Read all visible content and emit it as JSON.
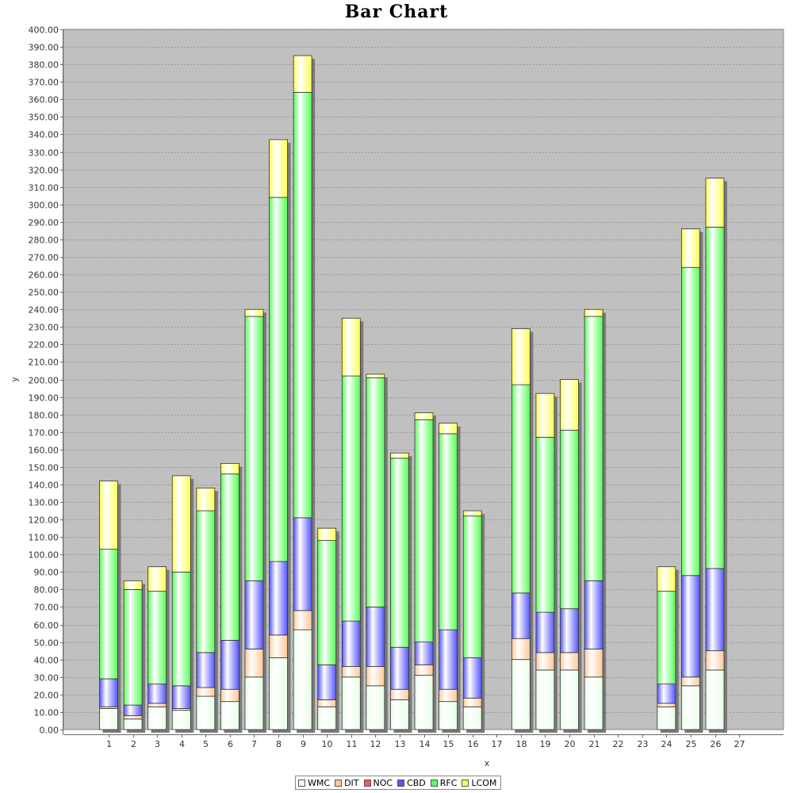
{
  "chart_data": {
    "type": "bar",
    "stacked": true,
    "title": "Bar Chart",
    "xlabel": "x",
    "ylabel": "y",
    "ylim": [
      0,
      400
    ],
    "ytick_step": 10,
    "grid": true,
    "legend_position": "bottom",
    "categories": [
      "1",
      "2",
      "3",
      "4",
      "5",
      "6",
      "7",
      "8",
      "9",
      "10",
      "11",
      "12",
      "13",
      "14",
      "15",
      "16",
      "17",
      "18",
      "19",
      "20",
      "21",
      "22",
      "23",
      "24",
      "25",
      "26",
      "27"
    ],
    "series": [
      {
        "name": "WMC",
        "color": "#e8ffe8",
        "values": [
          12,
          6,
          13,
          11,
          19,
          16,
          30,
          41,
          57,
          13,
          30,
          25,
          17,
          31,
          16,
          13,
          0,
          40,
          34,
          34,
          30,
          0,
          0,
          13,
          25,
          34,
          0
        ]
      },
      {
        "name": "DIT",
        "color": "#ffc896",
        "values": [
          1,
          2,
          2,
          1,
          5,
          7,
          16,
          13,
          11,
          4,
          6,
          11,
          6,
          6,
          7,
          5,
          0,
          12,
          10,
          10,
          16,
          0,
          0,
          2,
          5,
          11,
          0
        ]
      },
      {
        "name": "NOC",
        "color": "#ff5555",
        "values": [
          0,
          0,
          0,
          0,
          0,
          0,
          0,
          0,
          0,
          0,
          0,
          0,
          0,
          0,
          0,
          0,
          0,
          0,
          0,
          0,
          0,
          0,
          0,
          0,
          0,
          0,
          0
        ]
      },
      {
        "name": "CBD",
        "color": "#5555ff",
        "values": [
          16,
          6,
          11,
          13,
          20,
          28,
          39,
          42,
          53,
          20,
          26,
          34,
          24,
          13,
          34,
          23,
          0,
          26,
          23,
          25,
          39,
          0,
          0,
          11,
          58,
          47,
          0
        ]
      },
      {
        "name": "RFC",
        "color": "#55ff55",
        "values": [
          74,
          66,
          53,
          65,
          81,
          95,
          151,
          208,
          243,
          71,
          140,
          131,
          108,
          127,
          112,
          81,
          0,
          119,
          100,
          102,
          151,
          0,
          0,
          53,
          176,
          195,
          0
        ]
      },
      {
        "name": "LCOM",
        "color": "#ffff55",
        "values": [
          39,
          5,
          14,
          55,
          13,
          6,
          4,
          33,
          21,
          7,
          33,
          2,
          3,
          4,
          6,
          3,
          0,
          32,
          25,
          29,
          4,
          0,
          0,
          14,
          22,
          28,
          0
        ]
      }
    ]
  }
}
